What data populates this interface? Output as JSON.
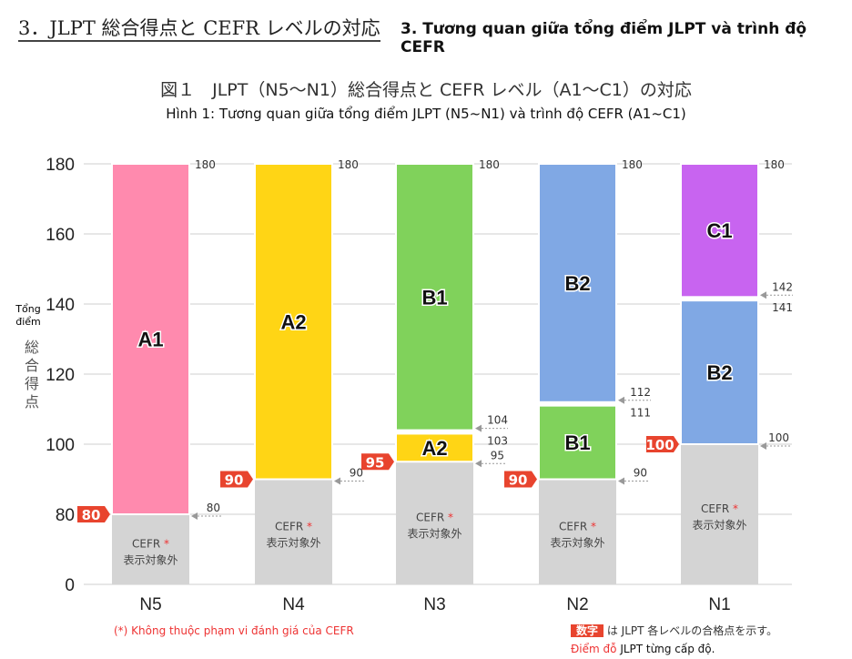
{
  "header": {
    "title_jp": "3．JLPT 総合得点と CEFR レベルの対応",
    "title_vi": "3. Tương quan giữa tổng điểm JLPT và trình độ CEFR"
  },
  "chart_data": {
    "type": "bar",
    "title": "図１　JLPT（N5〜N1）総合得点と CEFR レベル（A1〜C1）の対応",
    "subtitle": "Hình 1: Tương quan giữa tổng điểm JLPT (N5~N1) và trình độ CEFR (A1~C1)",
    "ylabel_vi": "Tổng điểm",
    "ylabel_jp": "総合得点",
    "yticks": [
      0,
      80,
      100,
      120,
      140,
      160,
      180
    ],
    "ylim": [
      0,
      180
    ],
    "grid": true,
    "categories": [
      "N5",
      "N4",
      "N3",
      "N2",
      "N1"
    ],
    "pass_marks": [
      80,
      90,
      95,
      90,
      100
    ],
    "not_covered_label": "CEFR",
    "not_covered_label2": "表示対象外",
    "asterisk": "*",
    "bars": [
      {
        "segments": [
          {
            "label": "",
            "from": 0,
            "to": 80,
            "color": "#d4d4d4"
          },
          {
            "label": "A1",
            "from": 80,
            "to": 180,
            "color": "#ff8aae"
          }
        ],
        "labels": [
          "180",
          "80"
        ]
      },
      {
        "segments": [
          {
            "label": "",
            "from": 0,
            "to": 90,
            "color": "#d4d4d4"
          },
          {
            "label": "A2",
            "from": 90,
            "to": 180,
            "color": "#ffd515"
          }
        ],
        "labels": [
          "180",
          "90"
        ]
      },
      {
        "segments": [
          {
            "label": "",
            "from": 0,
            "to": 95,
            "color": "#d4d4d4"
          },
          {
            "label": "A2",
            "from": 95,
            "to": 103,
            "color": "#ffd515"
          },
          {
            "label": "B1",
            "from": 104,
            "to": 180,
            "color": "#80d25b"
          }
        ],
        "labels": [
          "180",
          "104",
          "103",
          "95"
        ]
      },
      {
        "segments": [
          {
            "label": "",
            "from": 0,
            "to": 90,
            "color": "#d4d4d4"
          },
          {
            "label": "B1",
            "from": 90,
            "to": 111,
            "color": "#80d25b"
          },
          {
            "label": "B2",
            "from": 112,
            "to": 180,
            "color": "#80a8e4"
          }
        ],
        "labels": [
          "180",
          "112",
          "111",
          "90"
        ]
      },
      {
        "segments": [
          {
            "label": "",
            "from": 0,
            "to": 100,
            "color": "#d4d4d4"
          },
          {
            "label": "B2",
            "from": 100,
            "to": 141,
            "color": "#80a8e4"
          },
          {
            "label": "C1",
            "from": 142,
            "to": 180,
            "color": "#c864f0"
          }
        ],
        "labels": [
          "180",
          "142",
          "141",
          "100"
        ]
      }
    ]
  },
  "footnote": "(*) Không thuộc phạm vi đánh giá của CEFR",
  "legend": {
    "tag": "数字",
    "text_jp": "は JLPT 各レベルの合格点を示す。",
    "red_vi": "Điểm đỗ",
    "text_vi": "JLPT từng cấp độ."
  },
  "colors": {
    "tag": "#e8442e"
  }
}
